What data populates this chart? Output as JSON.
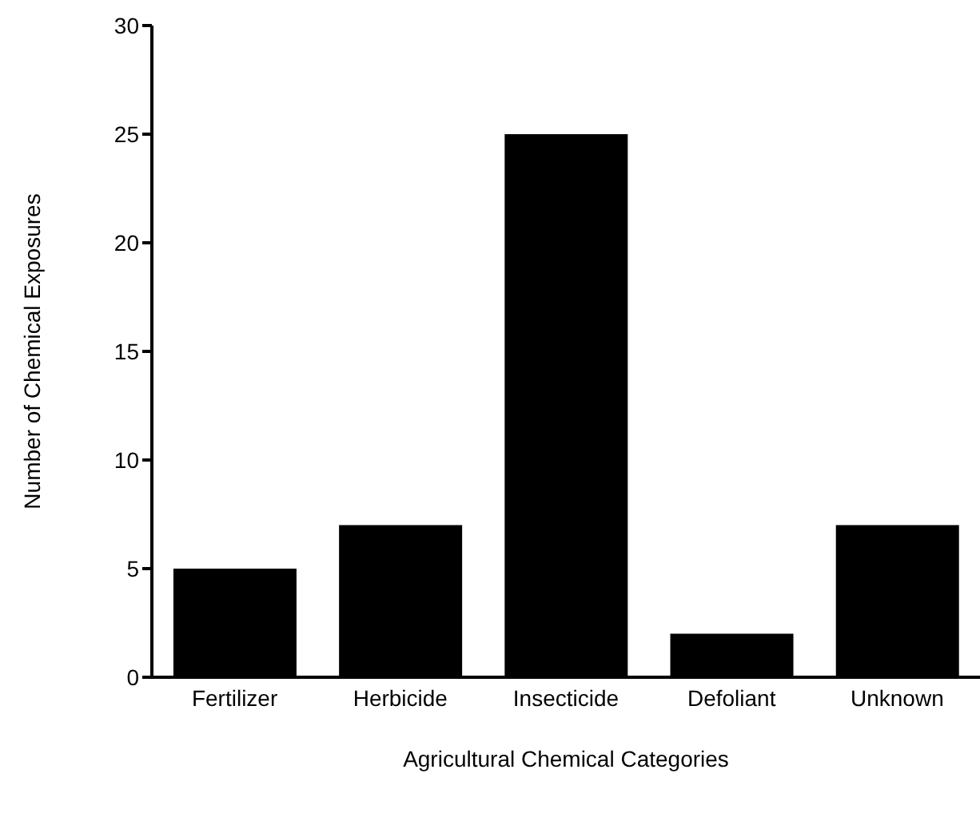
{
  "chart_data": {
    "type": "bar",
    "xlabel": "Agricultural Chemical Categories",
    "ylabel": "Number of Chemical Exposures",
    "categories": [
      "Fertilizer",
      "Herbicide",
      "Insecticide",
      "Defoliant",
      "Unknown"
    ],
    "values": [
      5,
      7,
      25,
      2,
      7
    ],
    "color": "#000000",
    "ylim": [
      0,
      30
    ],
    "yticks": [
      0,
      5,
      10,
      15,
      20,
      25,
      30
    ]
  }
}
